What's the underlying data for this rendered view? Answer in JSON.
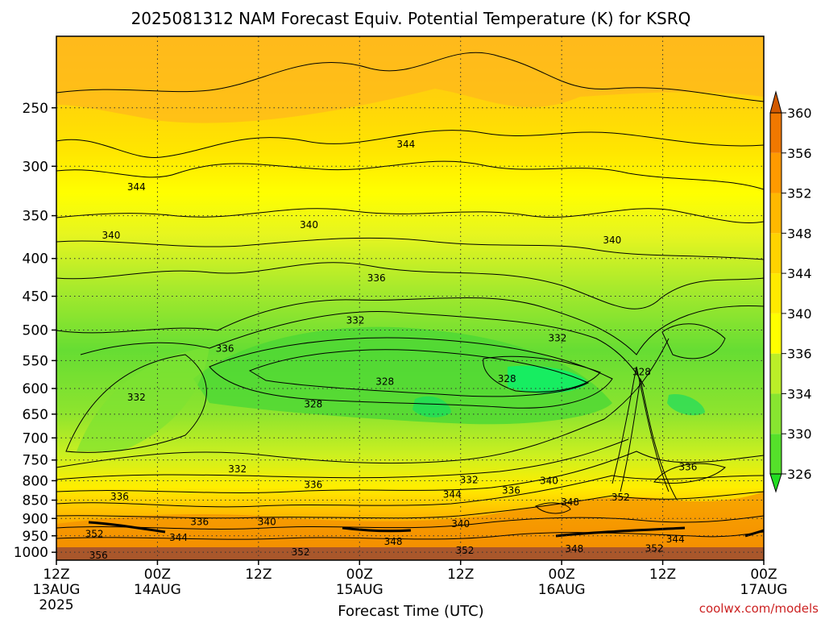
{
  "chart_data": {
    "type": "heatmap",
    "title": "2025081312 NAM Forecast Equiv. Potential Temperature (K) for KSRQ",
    "xlabel": "Forecast Time (UTC)",
    "ylabel": "",
    "x_ticks": [
      {
        "hour": 0,
        "label": "12Z",
        "date": "13AUG",
        "year": "2025"
      },
      {
        "hour": 12,
        "label": "00Z",
        "date": "14AUG"
      },
      {
        "hour": 24,
        "label": "12Z"
      },
      {
        "hour": 36,
        "label": "00Z",
        "date": "15AUG"
      },
      {
        "hour": 48,
        "label": "12Z"
      },
      {
        "hour": 60,
        "label": "00Z",
        "date": "16AUG"
      },
      {
        "hour": 72,
        "label": "12Z"
      },
      {
        "hour": 84,
        "label": "00Z",
        "date": "17AUG"
      }
    ],
    "xlim": [
      0,
      84
    ],
    "y_ticks": [
      250,
      300,
      350,
      400,
      450,
      500,
      550,
      600,
      650,
      700,
      750,
      800,
      850,
      900,
      950,
      1000
    ],
    "ylim": [
      1025,
      200
    ],
    "y_scale": "log",
    "grid": true,
    "colorbar": {
      "levels": [
        326,
        330,
        334,
        336,
        340,
        344,
        348,
        352,
        356,
        360
      ],
      "labels": [
        "326",
        "330",
        "334",
        "336",
        "340",
        "344",
        "348",
        "352",
        "356",
        "360"
      ],
      "colors": [
        "#22dd22",
        "#55e02a",
        "#88e530",
        "#bbee28",
        "#ffff00",
        "#ffea00",
        "#ffd300",
        "#ffb800",
        "#ff9a00",
        "#f07800",
        "#d25a00"
      ]
    },
    "contour_labels": [
      {
        "value": "344",
        "hour": 41.5,
        "p": 280
      },
      {
        "value": "344",
        "hour": 9.5,
        "p": 320
      },
      {
        "value": "340",
        "hour": 6.5,
        "p": 372
      },
      {
        "value": "340",
        "hour": 30,
        "p": 360
      },
      {
        "value": "340",
        "hour": 66,
        "p": 378
      },
      {
        "value": "336",
        "hour": 38,
        "p": 425
      },
      {
        "value": "336",
        "hour": 20,
        "p": 530
      },
      {
        "value": "332",
        "hour": 35.5,
        "p": 485
      },
      {
        "value": "332",
        "hour": 59.5,
        "p": 513
      },
      {
        "value": "328",
        "hour": 39,
        "p": 587
      },
      {
        "value": "328",
        "hour": 53.5,
        "p": 582
      },
      {
        "value": "328",
        "hour": 30.5,
        "p": 630
      },
      {
        "value": "328",
        "hour": 69.5,
        "p": 570
      },
      {
        "value": "332",
        "hour": 9.5,
        "p": 617
      },
      {
        "value": "332",
        "hour": 21.5,
        "p": 772
      },
      {
        "value": "336",
        "hour": 7.5,
        "p": 840
      },
      {
        "value": "336",
        "hour": 30.5,
        "p": 810
      },
      {
        "value": "336",
        "hour": 17,
        "p": 910
      },
      {
        "value": "340",
        "hour": 25,
        "p": 910
      },
      {
        "value": "340",
        "hour": 48,
        "p": 915
      },
      {
        "value": "332",
        "hour": 49,
        "p": 798
      },
      {
        "value": "344",
        "hour": 47,
        "p": 835
      },
      {
        "value": "336",
        "hour": 54,
        "p": 825
      },
      {
        "value": "340",
        "hour": 58.5,
        "p": 800
      },
      {
        "value": "348",
        "hour": 61,
        "p": 855
      },
      {
        "value": "352",
        "hour": 67,
        "p": 843
      },
      {
        "value": "336",
        "hour": 75,
        "p": 767
      },
      {
        "value": "352",
        "hour": 4.5,
        "p": 945
      },
      {
        "value": "344",
        "hour": 14.5,
        "p": 955
      },
      {
        "value": "356",
        "hour": 5,
        "p": 1010
      },
      {
        "value": "352",
        "hour": 29,
        "p": 1000
      },
      {
        "value": "348",
        "hour": 40,
        "p": 968
      },
      {
        "value": "352",
        "hour": 48.5,
        "p": 995
      },
      {
        "value": "348",
        "hour": 61.5,
        "p": 990
      },
      {
        "value": "352",
        "hour": 71,
        "p": 988
      },
      {
        "value": "344",
        "hour": 73.5,
        "p": 960
      }
    ]
  },
  "credit": "coolwx.com/models"
}
